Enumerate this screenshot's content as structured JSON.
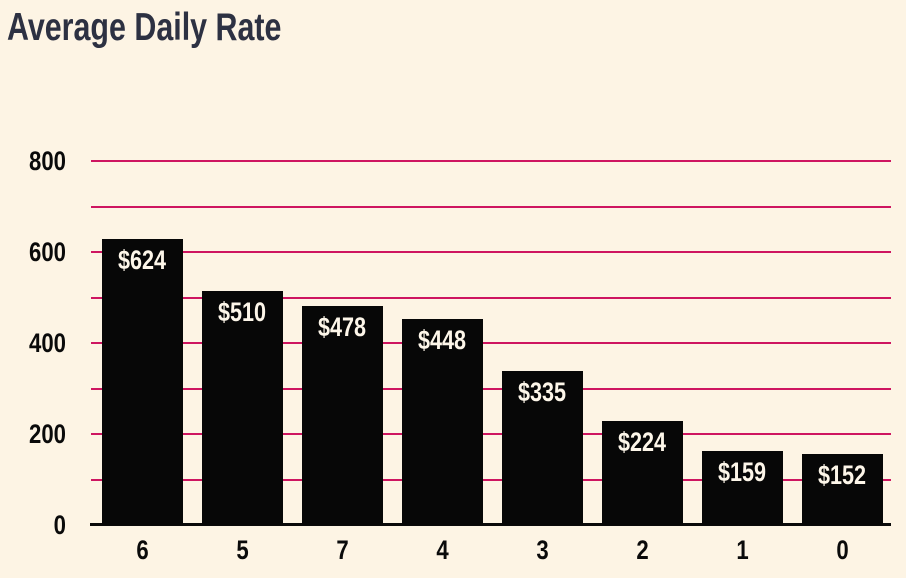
{
  "title": "Average Daily Rate",
  "chart_data": {
    "type": "bar",
    "title": "Average Daily Rate",
    "categories": [
      "6",
      "5",
      "7",
      "4",
      "3",
      "2",
      "1",
      "0"
    ],
    "values": [
      624,
      510,
      478,
      448,
      335,
      224,
      159,
      152
    ],
    "bar_labels": [
      "$624",
      "$510",
      "$478",
      "$448",
      "$335",
      "$224",
      "$159",
      "$152"
    ],
    "xlabel": "",
    "ylabel": "",
    "ylim": [
      0,
      800
    ],
    "ytick_values": [
      0,
      200,
      400,
      600,
      800
    ],
    "gridline_values": [
      100,
      200,
      300,
      400,
      500,
      600,
      700,
      800
    ],
    "grid": true,
    "legend": false,
    "colors": {
      "background": "#FDF4E4",
      "bar": "#070707",
      "bar_label": "#FDF6E9",
      "gridline": "#CE1560",
      "baseline": "#0A0A0A",
      "axis_text": "#0A0A0A",
      "title": "#2D3142"
    }
  }
}
